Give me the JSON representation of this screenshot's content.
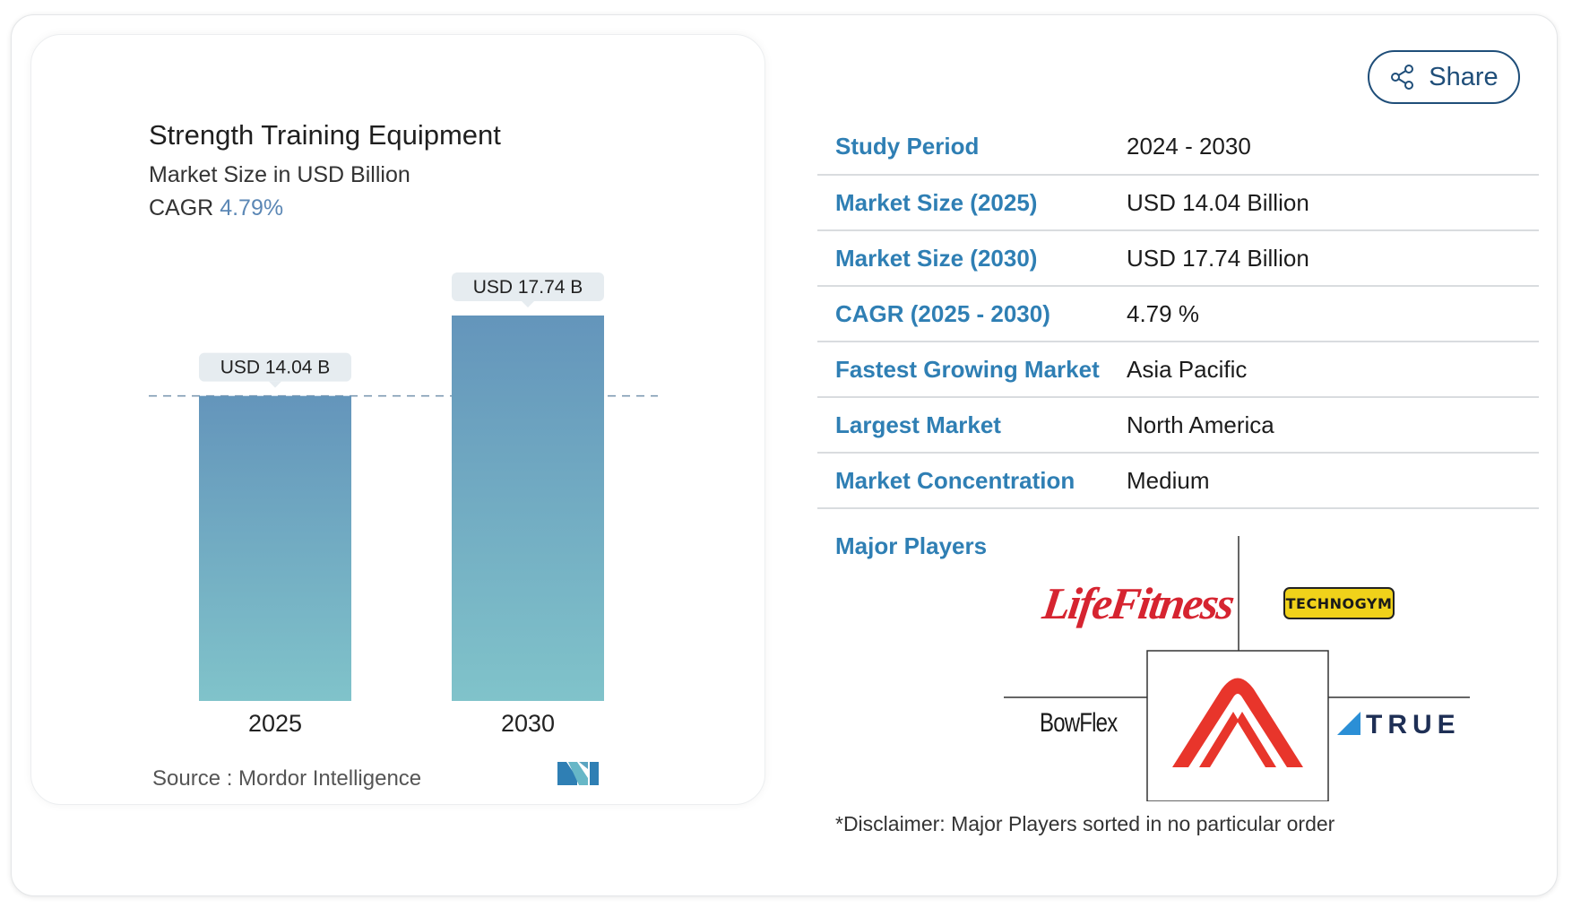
{
  "share": {
    "label": "Share",
    "icon": "share-icon"
  },
  "chart_data": {
    "type": "bar",
    "title": "Strength Training Equipment",
    "subtitle": "Market Size in USD Billion",
    "cagr_label": "CAGR",
    "cagr_value": "4.79%",
    "categories": [
      "2025",
      "2030"
    ],
    "values": [
      14.04,
      17.74
    ],
    "data_labels": [
      "USD 14.04 B",
      "USD 17.74 B"
    ],
    "ylim": [
      0,
      17.74
    ],
    "reference_line": {
      "value": 14.04,
      "style": "dashed"
    },
    "bar_gradient": [
      "#6495bb",
      "#80c3ca"
    ],
    "source": "Source :  Mordor Intelligence"
  },
  "stats": [
    {
      "label": "Study Period",
      "value": "2024 - 2030"
    },
    {
      "label": "Market Size (2025)",
      "value": "USD 14.04 Billion"
    },
    {
      "label": "Market Size (2030)",
      "value": "USD 17.74 Billion"
    },
    {
      "label": "CAGR (2025 - 2030)",
      "value": "4.79 %"
    },
    {
      "label": "Fastest Growing Market",
      "value": "Asia Pacific"
    },
    {
      "label": "Largest Market",
      "value": "North America"
    },
    {
      "label": "Market Concentration",
      "value": "Medium"
    }
  ],
  "players": {
    "label": "Major Players",
    "logos": [
      "LifeFitness",
      "TECHNOGYM",
      "BowFlex",
      "TRUE"
    ],
    "disclaimer": "*Disclaimer: Major Players sorted in no particular order"
  },
  "colors": {
    "accent": "#2f7fb4",
    "share_border": "#1f4e79",
    "cagr": "#5b87b5",
    "lifefitness": "#d62430",
    "technogym": "#f0d21a",
    "center_logo": "#e8352b"
  }
}
